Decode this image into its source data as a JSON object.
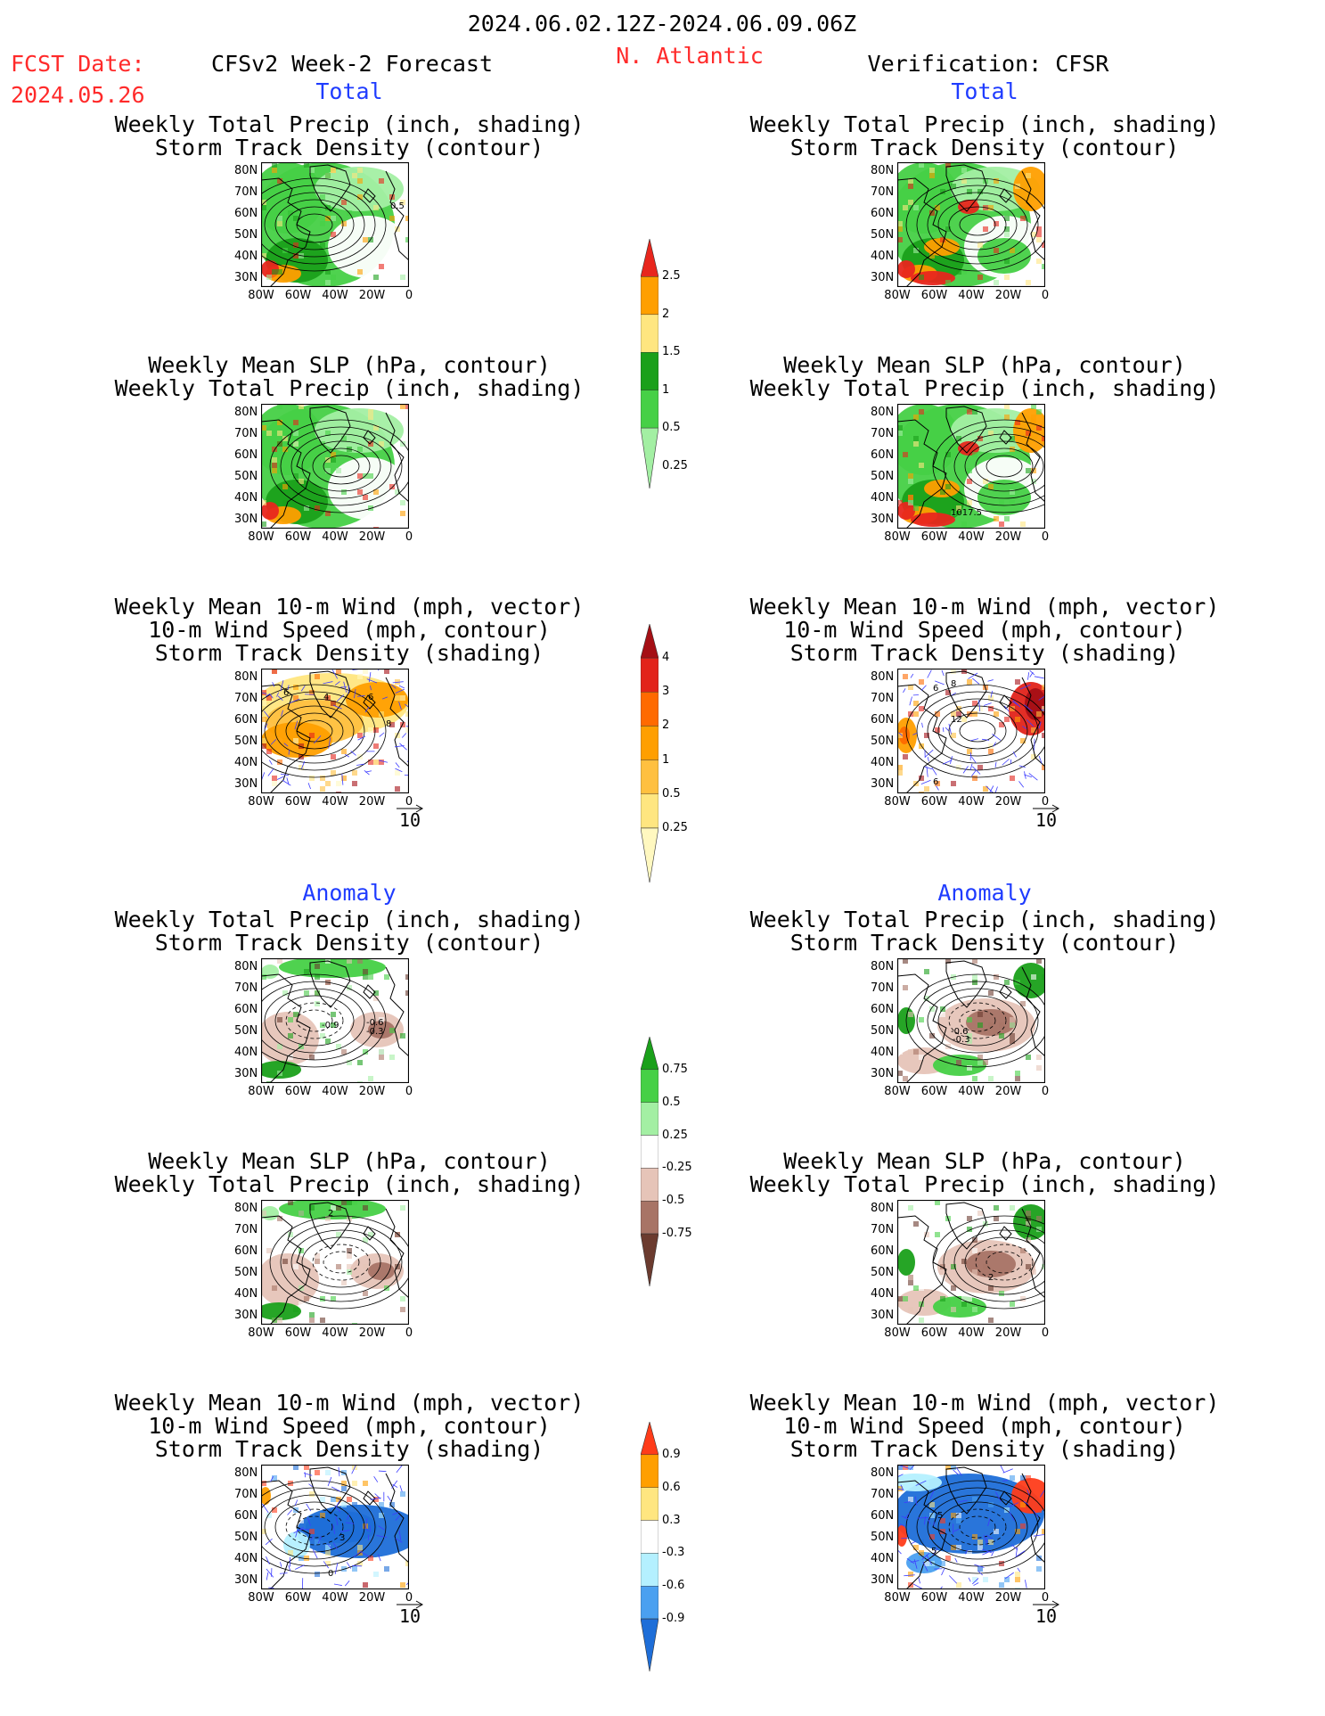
{
  "header": {
    "date_range": "2024.06.02.12Z-2024.06.09.06Z",
    "fcst_label": "FCST Date:",
    "fcst_date": "2024.05.26",
    "model_title": "CFSv2 Week-2 Forecast",
    "region": "N. Atlantic",
    "verification": "Verification: CFSR"
  },
  "sections": {
    "total": "Total",
    "anomaly": "Anomaly"
  },
  "panel_titles": {
    "precip_storm": [
      "Weekly Total Precip (inch, shading)",
      "Storm Track Density (contour)"
    ],
    "slp_precip": [
      "Weekly Mean SLP (hPa, contour)",
      "Weekly Total Precip (inch, shading)"
    ],
    "wind_storm": [
      "Weekly Mean 10-m Wind (mph, vector)",
      "10-m Wind Speed (mph, contour)",
      "Storm Track Density (shading)"
    ]
  },
  "axes": {
    "lat_labels": [
      "80N",
      "70N",
      "60N",
      "50N",
      "40N",
      "30N"
    ],
    "lon_labels": [
      "80W",
      "60W",
      "40W",
      "20W",
      "0"
    ]
  },
  "vector_reference": "10",
  "contour_labels": {
    "fcst_total_precip": "0.5",
    "verif_total_slp": "1017.5",
    "fcst_anom_precip": [
      "-0.9",
      "-0.6",
      "-0.3"
    ],
    "verif_anom_precip": [
      "-0.6",
      "-0.3"
    ],
    "fcst_anom_slp": "2",
    "verif_anom_slp": "2",
    "fcst_total_wind": [
      "4",
      "6",
      "8",
      "6"
    ],
    "verif_total_wind": [
      "6",
      "8",
      "12",
      "6"
    ],
    "fcst_anom_wind": [
      "3",
      "0"
    ],
    "verif_anom_wind": [
      "5",
      "5"
    ]
  },
  "colorbars": {
    "total_precip": {
      "labels": [
        "2.5",
        "2",
        "1.5",
        "1",
        "0.5",
        "0.25"
      ],
      "colors": [
        "#e8261d",
        "#ff9f00",
        "#ffe680",
        "#1aa01a",
        "#46d046",
        "#a3efa3"
      ]
    },
    "total_storm": {
      "labels": [
        "4",
        "3",
        "2",
        "1",
        "0.5",
        "0.25"
      ],
      "colors": [
        "#a50f15",
        "#e2231a",
        "#ff6a00",
        "#ff9f00",
        "#ffc040",
        "#ffe680",
        "#fff8c0"
      ]
    },
    "anom_precip": {
      "labels": [
        "0.75",
        "0.5",
        "0.25",
        "-0.25",
        "-0.5",
        "-0.75"
      ],
      "colors": [
        "#1aa01a",
        "#46d046",
        "#a3efa3",
        "#ffffff",
        "#e6c4b8",
        "#a87466",
        "#6b3b2f"
      ]
    },
    "anom_storm": {
      "labels": [
        "0.9",
        "0.6",
        "0.3",
        "-0.3",
        "-0.6",
        "-0.9"
      ],
      "colors": [
        "#ff3c1a",
        "#ff9f00",
        "#ffe680",
        "#ffffff",
        "#b4f0ff",
        "#4aa0f0",
        "#1e6ed8"
      ]
    }
  },
  "colors": {
    "title_red": "#ff2a2a",
    "section_blue": "#1f3cff",
    "land_green": "#46d046",
    "ocean_white": "#ffffff",
    "vector_blue": "#3c3cff"
  }
}
